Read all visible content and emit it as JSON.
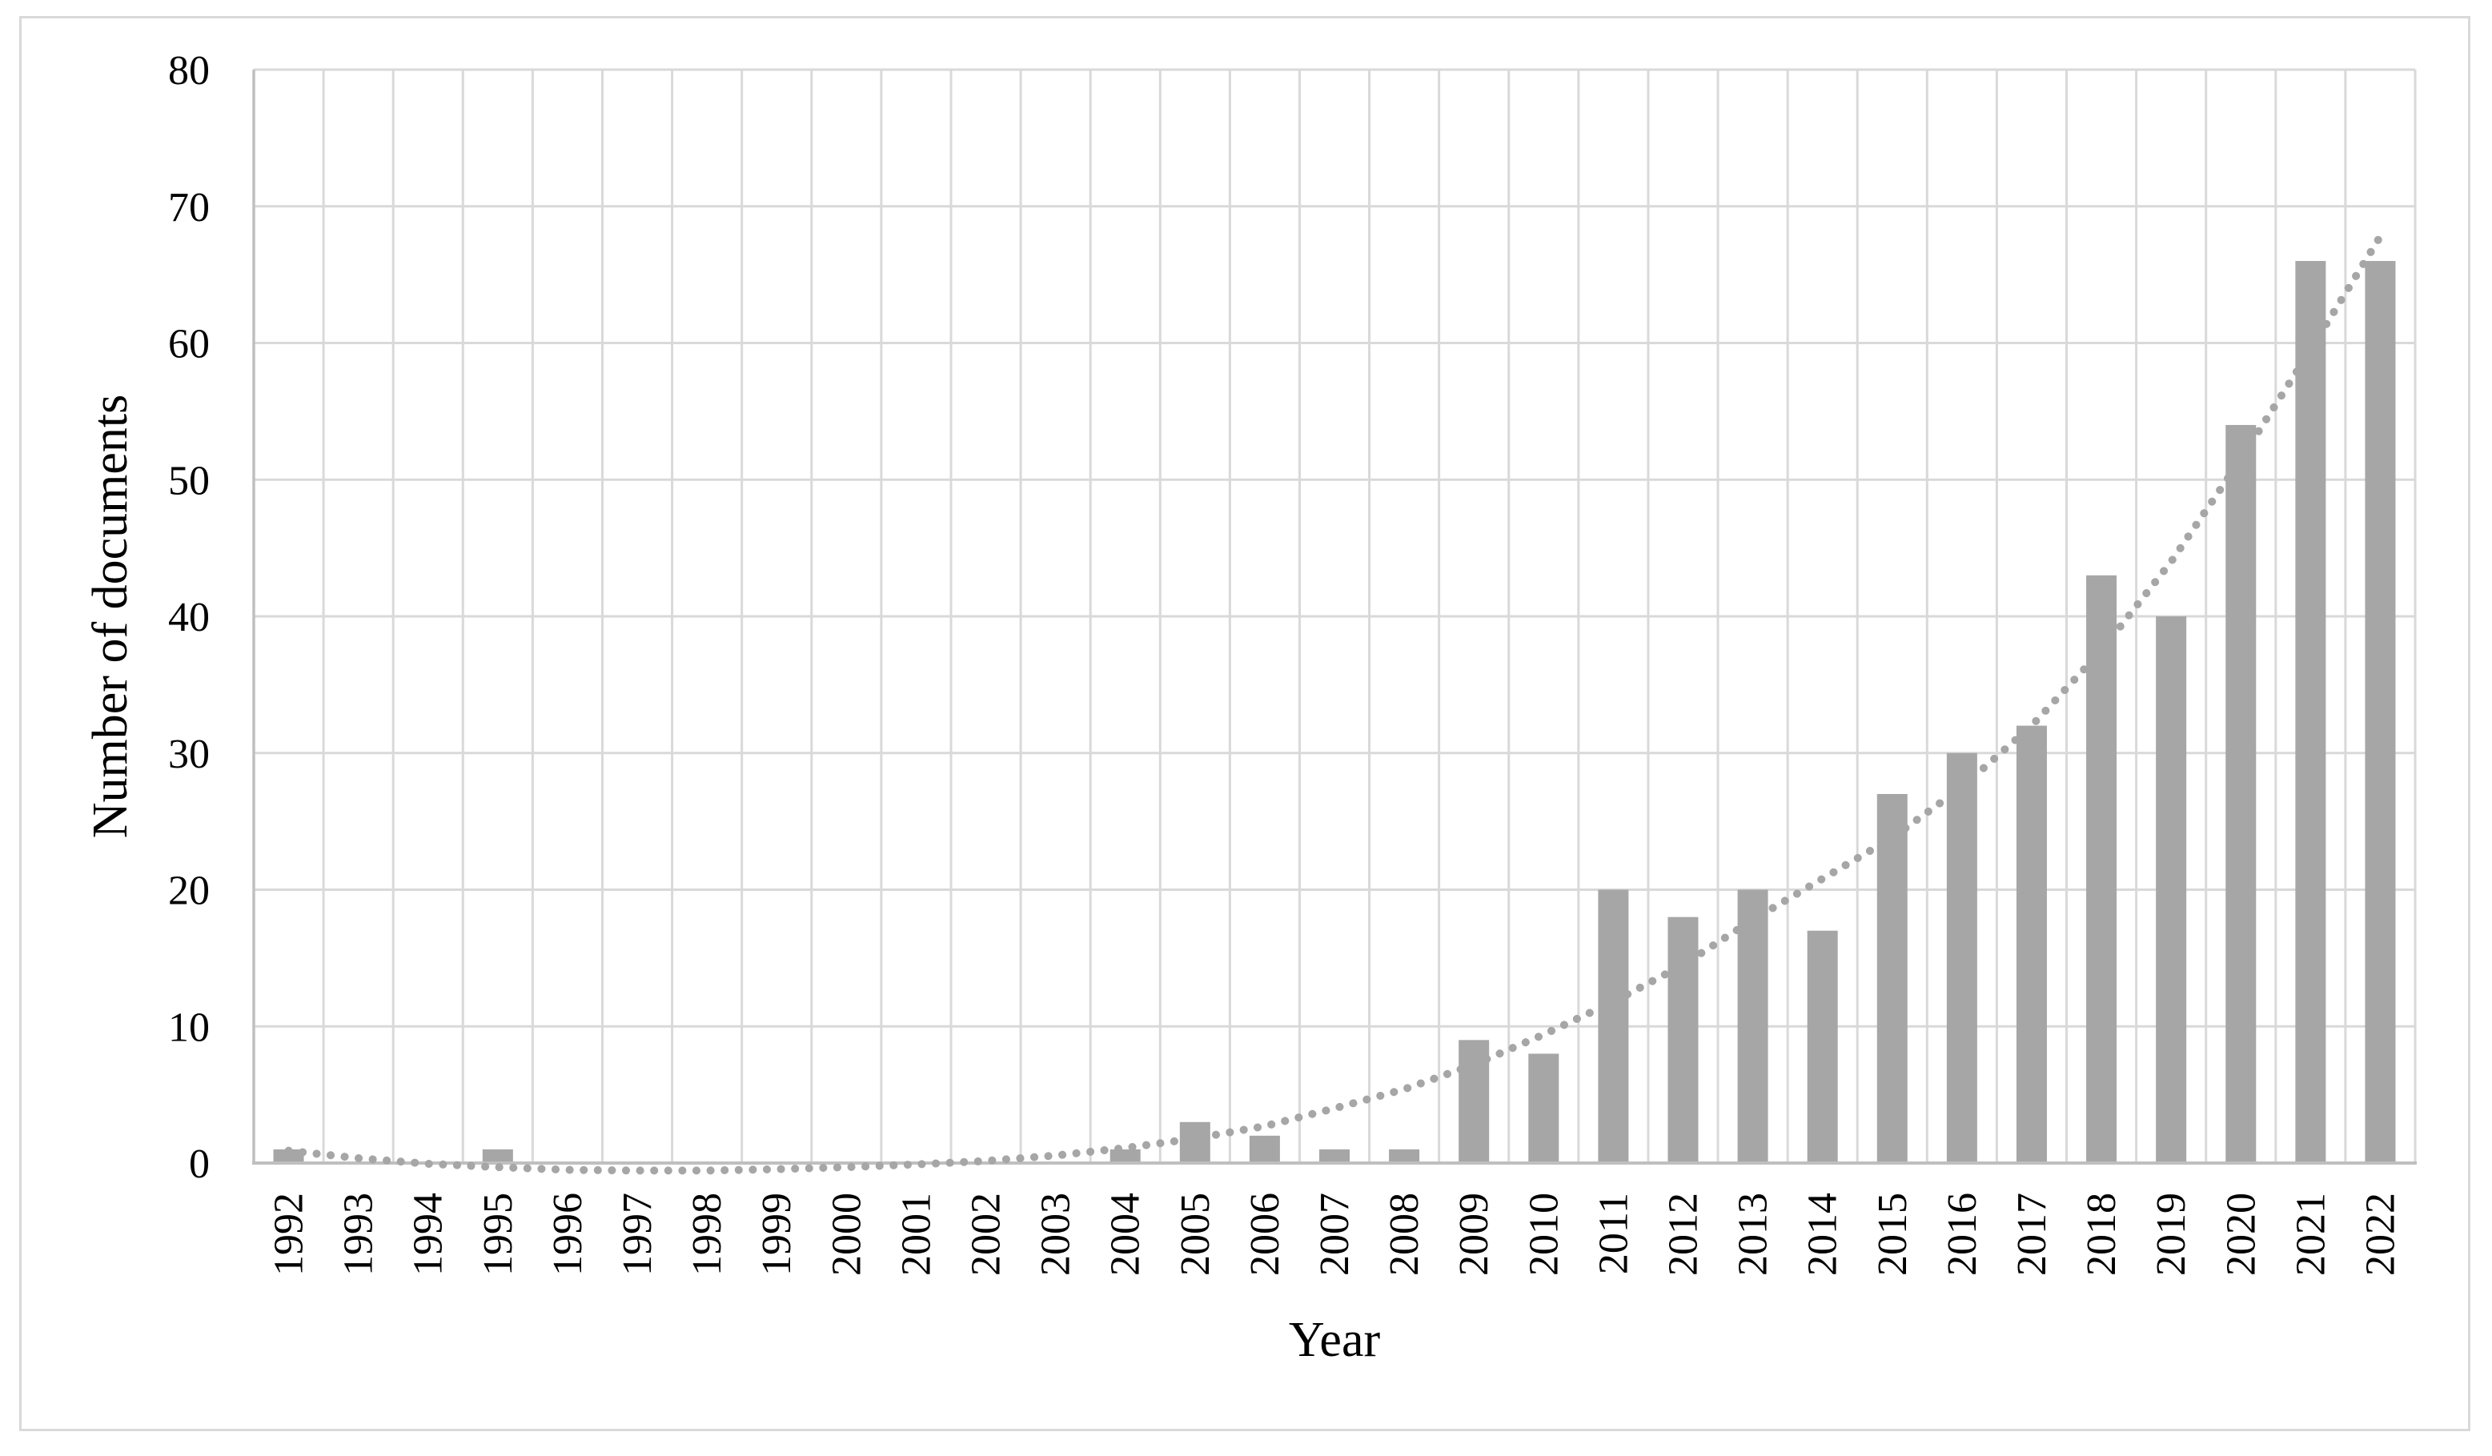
{
  "figure": {
    "background": "#FFFFFF",
    "border_color": "#D9D9D9"
  },
  "chart_data": {
    "type": "bar",
    "title": "",
    "xlabel": "Year",
    "ylabel": "Number of documents",
    "categories": [
      "1992",
      "1993",
      "1994",
      "1995",
      "1996",
      "1997",
      "1998",
      "1999",
      "2000",
      "2001",
      "2002",
      "2003",
      "2004",
      "2005",
      "2006",
      "2007",
      "2008",
      "2009",
      "2010",
      "2011",
      "2012",
      "2013",
      "2014",
      "2015",
      "2016",
      "2017",
      "2018",
      "2019",
      "2020",
      "2021",
      "2022"
    ],
    "values": [
      1,
      0,
      0,
      1,
      0,
      0,
      0,
      0,
      0,
      0,
      0,
      0,
      1,
      3,
      2,
      1,
      1,
      9,
      8,
      20,
      18,
      20,
      17,
      27,
      30,
      32,
      43,
      40,
      54,
      66,
      66
    ],
    "trendline": {
      "style": "dotted",
      "values": [
        0.9,
        0.35,
        -0.05,
        -0.3,
        -0.5,
        -0.55,
        -0.55,
        -0.45,
        -0.3,
        -0.1,
        0.15,
        0.55,
        1.1,
        1.8,
        2.7,
        4.0,
        5.4,
        7.2,
        9.4,
        11.8,
        14.5,
        17.8,
        20.8,
        23.8,
        27.5,
        32.0,
        37.5,
        44.0,
        51.5,
        59.5,
        67.8
      ]
    },
    "ylim": [
      0,
      80
    ],
    "yticks": [
      0,
      10,
      20,
      30,
      40,
      50,
      60,
      70,
      80
    ],
    "grid": "both",
    "legend": "none",
    "colors": {
      "bar": "#A6A6A6",
      "trendline": "#A6A6A6",
      "gridline": "#D9D9D9",
      "axis_line": "#BFBFBF",
      "text": "#000000"
    }
  }
}
